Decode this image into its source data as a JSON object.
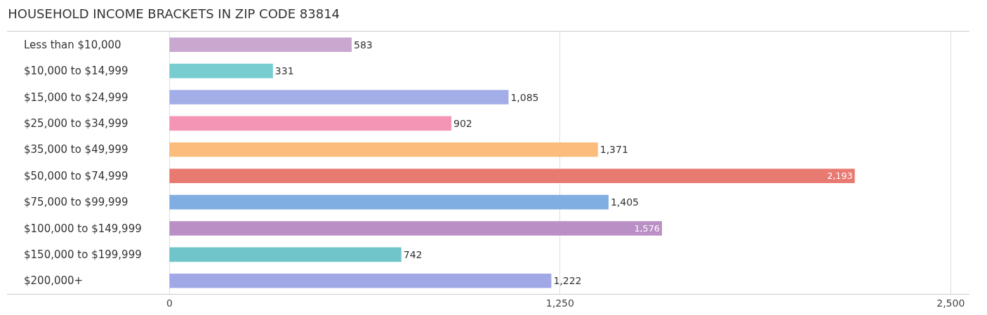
{
  "chart_data": {
    "type": "bar",
    "orientation": "horizontal",
    "title": "HOUSEHOLD INCOME BRACKETS IN ZIP CODE 83814",
    "categories": [
      "Less than $10,000",
      "$10,000 to $14,999",
      "$15,000 to $24,999",
      "$25,000 to $34,999",
      "$35,000 to $49,999",
      "$50,000 to $74,999",
      "$75,000 to $99,999",
      "$100,000 to $149,999",
      "$150,000 to $199,999",
      "$200,000+"
    ],
    "values": [
      583,
      331,
      1085,
      902,
      1371,
      2193,
      1405,
      1576,
      742,
      1222
    ],
    "value_labels": [
      "583",
      "331",
      "1,085",
      "902",
      "1,371",
      "2,193",
      "1,405",
      "1,576",
      "742",
      "1,222"
    ],
    "colors": [
      "#c9a8d0",
      "#77cdd0",
      "#a3aee8",
      "#f595b6",
      "#fbbc7c",
      "#e97a72",
      "#80aee3",
      "#b98fc5",
      "#6fc5c9",
      "#a1a8e6"
    ],
    "xlim": [
      -520,
      2560
    ],
    "xticks": [
      0,
      {
        "value": 1250,
        "label": "1,250"
      },
      {
        "value": 2500,
        "label": "2,500"
      }
    ],
    "grid": "x",
    "legend": false
  }
}
